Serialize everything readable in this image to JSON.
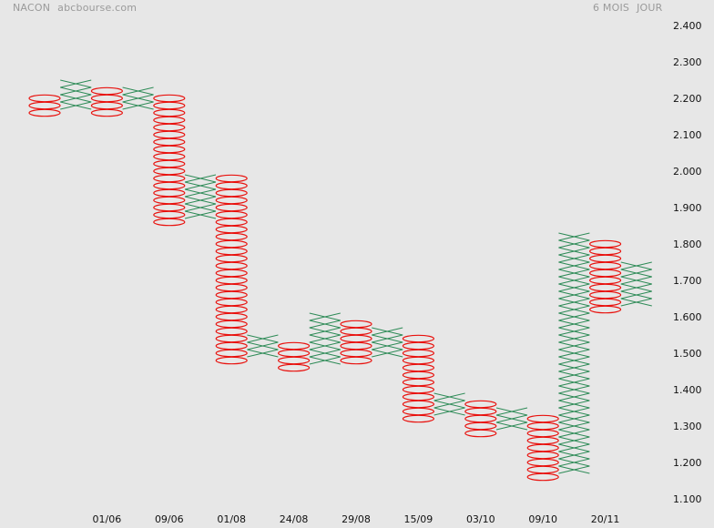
{
  "header": {
    "symbol": "NACON",
    "source": "abcbourse.com",
    "period": "6 MOIS",
    "interval": "JOUR"
  },
  "colors": {
    "background": "#e7e7e7",
    "x_column": "#2e8b57",
    "o_column": "#e8130f",
    "text": "#111111"
  },
  "chart_data": {
    "type": "point-and-figure",
    "title": "",
    "box_size": 0.02,
    "ylim": [
      1.1,
      2.4
    ],
    "y_ticks": [
      "2.400",
      "2.300",
      "2.200",
      "2.100",
      "2.000",
      "1.900",
      "1.800",
      "1.700",
      "1.600",
      "1.500",
      "1.400",
      "1.300",
      "1.200",
      "1.100"
    ],
    "x_labels": [
      {
        "label": "01/06",
        "column": 2
      },
      {
        "label": "09/06",
        "column": 4
      },
      {
        "label": "01/08",
        "column": 6
      },
      {
        "label": "24/08",
        "column": 8
      },
      {
        "label": "29/08",
        "column": 10
      },
      {
        "label": "15/09",
        "column": 12
      },
      {
        "label": "03/10",
        "column": 14
      },
      {
        "label": "09/10",
        "column": 16
      },
      {
        "label": "20/11",
        "column": 18
      }
    ],
    "columns": [
      {
        "type": "O",
        "high": 2.2,
        "low": 2.16
      },
      {
        "type": "X",
        "low": 2.18,
        "high": 2.24
      },
      {
        "type": "O",
        "high": 2.22,
        "low": 2.16
      },
      {
        "type": "X",
        "low": 2.18,
        "high": 2.22
      },
      {
        "type": "O",
        "high": 2.2,
        "low": 1.86
      },
      {
        "type": "X",
        "low": 1.88,
        "high": 1.98
      },
      {
        "type": "O",
        "high": 1.98,
        "low": 1.48
      },
      {
        "type": "X",
        "low": 1.5,
        "high": 1.54
      },
      {
        "type": "O",
        "high": 1.52,
        "low": 1.46
      },
      {
        "type": "X",
        "low": 1.48,
        "high": 1.6
      },
      {
        "type": "O",
        "high": 1.58,
        "low": 1.48
      },
      {
        "type": "X",
        "low": 1.5,
        "high": 1.56
      },
      {
        "type": "O",
        "high": 1.54,
        "low": 1.32
      },
      {
        "type": "X",
        "low": 1.34,
        "high": 1.38
      },
      {
        "type": "O",
        "high": 1.36,
        "low": 1.28
      },
      {
        "type": "X",
        "low": 1.3,
        "high": 1.34
      },
      {
        "type": "O",
        "high": 1.32,
        "low": 1.16
      },
      {
        "type": "X",
        "low": 1.18,
        "high": 1.82
      },
      {
        "type": "O",
        "high": 1.8,
        "low": 1.62
      },
      {
        "type": "X",
        "low": 1.64,
        "high": 1.74
      }
    ]
  }
}
